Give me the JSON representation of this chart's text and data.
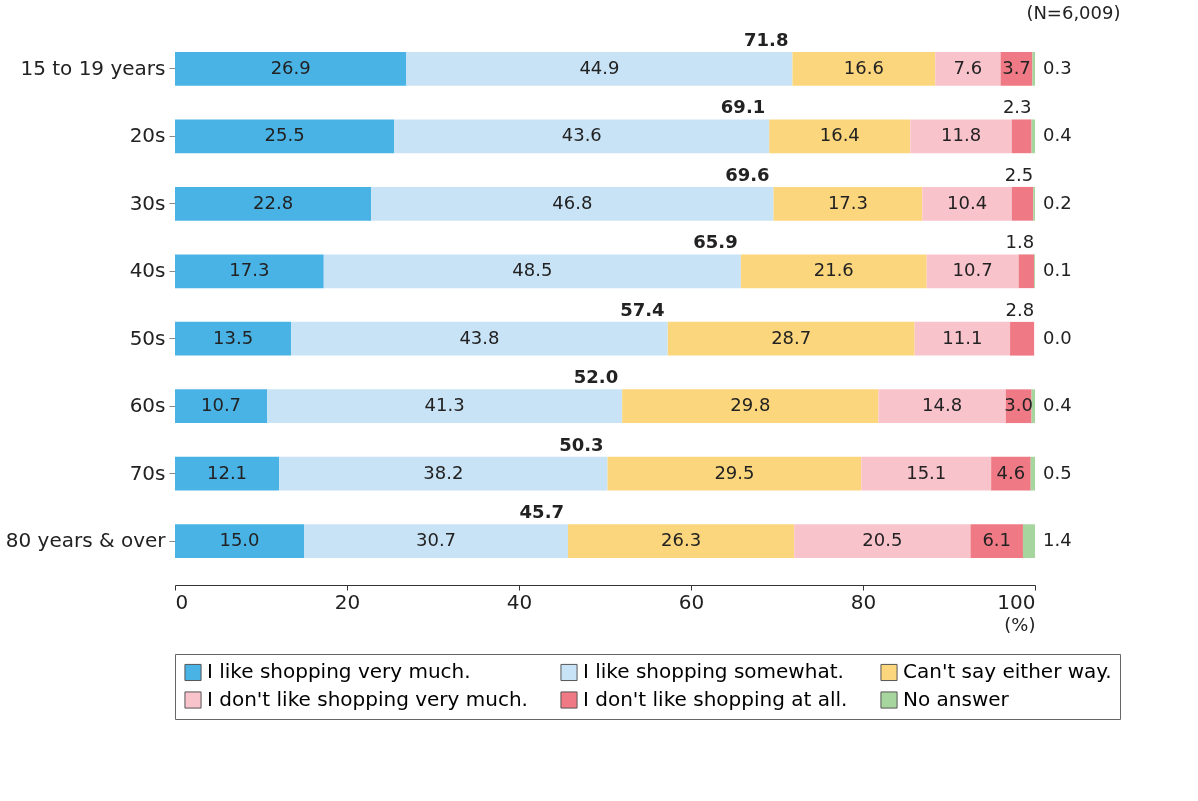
{
  "chart_data": {
    "type": "bar",
    "orientation": "horizontal",
    "stacked": true,
    "grid": false,
    "legend": "bottom",
    "categories": [
      "15 to 19 years",
      "20s",
      "30s",
      "40s",
      "50s",
      "60s",
      "70s",
      "80 years & over"
    ],
    "xlabel": "(%)",
    "xlim": [
      0,
      100
    ],
    "xticks": [
      0,
      20,
      40,
      60,
      80,
      100
    ],
    "series": [
      {
        "name": "I like shopping very much.",
        "color": "#49b3e6",
        "values": [
          26.9,
          25.5,
          22.8,
          17.3,
          13.5,
          10.7,
          12.1,
          15.0
        ],
        "value_labels": [
          "26.9",
          "25.5",
          "22.8",
          "17.3",
          "13.5",
          "10.7",
          "12.1",
          "15.0"
        ]
      },
      {
        "name": "I like shopping somewhat.",
        "color": "#c9e3f6",
        "values": [
          44.9,
          43.6,
          46.8,
          48.5,
          43.8,
          41.3,
          38.2,
          30.7
        ],
        "value_labels": [
          "44.9",
          "43.6",
          "46.8",
          "48.5",
          "43.8",
          "41.3",
          "38.2",
          "30.7"
        ]
      },
      {
        "name": "Can't say either way.",
        "color": "#fcd67c",
        "values": [
          16.6,
          16.4,
          17.3,
          21.6,
          28.7,
          29.8,
          29.5,
          26.3
        ],
        "value_labels": [
          "16.6",
          "16.4",
          "17.3",
          "21.6",
          "28.7",
          "29.8",
          "29.5",
          "26.3"
        ]
      },
      {
        "name": "I don't like shopping very much.",
        "color": "#f9c3cc",
        "values": [
          7.6,
          11.8,
          10.4,
          10.7,
          11.1,
          14.8,
          15.1,
          20.5
        ],
        "value_labels": [
          "7.6",
          "11.8",
          "10.4",
          "10.7",
          "11.1",
          "14.8",
          "15.1",
          "20.5"
        ]
      },
      {
        "name": "I don't like shopping at all.",
        "color": "#ef7a85",
        "values": [
          3.7,
          2.3,
          2.5,
          1.8,
          2.8,
          3.0,
          4.6,
          6.1
        ],
        "value_labels": [
          "3.7",
          "2.3",
          "2.5",
          "1.8",
          "2.8",
          "3.0",
          "4.6",
          "6.1"
        ]
      },
      {
        "name": "No answer",
        "color": "#a6d69e",
        "values": [
          0.3,
          0.4,
          0.2,
          0.1,
          0.0,
          0.4,
          0.5,
          1.4
        ],
        "value_labels": [
          "0.3",
          "0.4",
          "0.2",
          "0.1",
          "0.0",
          "0.4",
          "0.5",
          "1.4"
        ]
      }
    ],
    "annotations": [
      "(N=6,009)",
      {
        "text": "71.8",
        "x": 71.8,
        "y": "15 to 19 years"
      },
      {
        "text": "69.1",
        "x": 69.1,
        "y": "20s"
      },
      {
        "text": "69.6",
        "x": 69.6,
        "y": "30s"
      },
      {
        "text": "65.9",
        "x": 65.9,
        "y": "40s"
      },
      {
        "text": "57.4",
        "x": 57.4,
        "y": "50s"
      },
      {
        "text": "52.0",
        "x": 52.0,
        "y": "60s"
      },
      {
        "text": "50.3",
        "x": 50.3,
        "y": "70s"
      },
      {
        "text": "45.7",
        "x": 45.7,
        "y": "80 years & over"
      }
    ]
  }
}
